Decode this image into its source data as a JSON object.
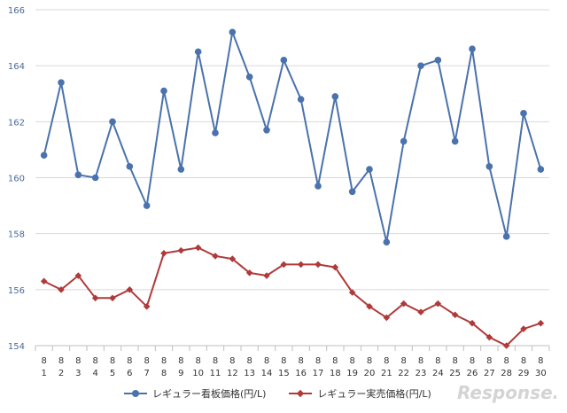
{
  "chart_data": {
    "type": "line",
    "x": [
      "1",
      "2",
      "3",
      "4",
      "5",
      "6",
      "7",
      "8",
      "9",
      "10",
      "11",
      "12",
      "13",
      "14",
      "15",
      "16",
      "17",
      "18",
      "19",
      "20",
      "21",
      "22",
      "23",
      "24",
      "25",
      "26",
      "27",
      "28",
      "29",
      "30"
    ],
    "x_month": "8",
    "ylim": [
      154,
      166
    ],
    "yticks": [
      154,
      156,
      158,
      160,
      162,
      164,
      166
    ],
    "grid": "horizontal",
    "legend_position": "bottom",
    "series": [
      {
        "name": "レギュラー看板価格(円/L)",
        "color": "#4a72ac",
        "marker": "circle",
        "values": [
          160.8,
          163.4,
          160.1,
          160.0,
          162.0,
          160.4,
          159.0,
          163.1,
          160.3,
          164.5,
          161.6,
          165.2,
          163.6,
          161.7,
          164.2,
          162.8,
          159.7,
          162.9,
          159.5,
          160.3,
          157.7,
          161.3,
          164.0,
          164.2,
          161.3,
          164.6,
          160.4,
          157.9,
          162.3,
          160.3
        ]
      },
      {
        "name": "レギュラー実売価格(円/L)",
        "color": "#b03a3a",
        "marker": "diamond",
        "values": [
          156.3,
          156.0,
          156.5,
          155.7,
          155.7,
          156.0,
          155.4,
          157.3,
          157.4,
          157.5,
          157.2,
          157.1,
          156.6,
          156.5,
          156.9,
          156.9,
          156.9,
          156.8,
          155.9,
          155.4,
          155.0,
          155.5,
          155.2,
          155.5,
          155.1,
          154.8,
          154.3,
          154.0,
          154.6,
          154.8
        ]
      }
    ]
  },
  "logo_text": "Response."
}
